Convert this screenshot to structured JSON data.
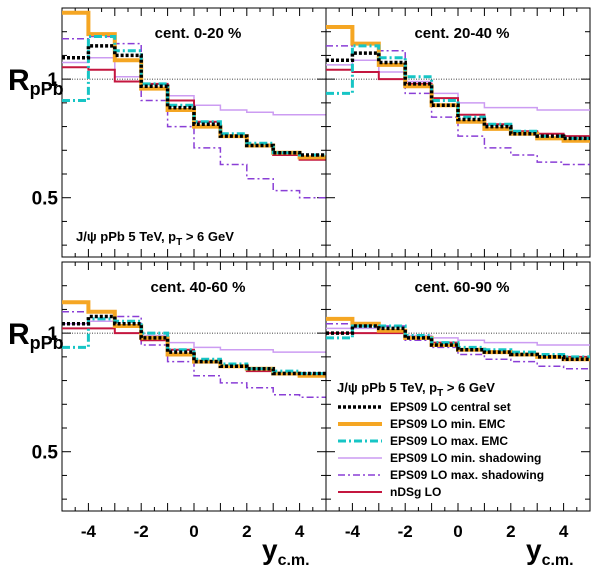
{
  "chart_data": {
    "type": "line",
    "y_axis_label": {
      "main": "R",
      "sub": "pPb"
    },
    "x_axis_label": {
      "main": "y",
      "sub": "c.m."
    },
    "xlim": [
      -5,
      5
    ],
    "ylim": [
      0.25,
      1.3
    ],
    "reference_line": 1.0,
    "x_ticks": [
      "-4",
      "-2",
      "0",
      "2",
      "4"
    ],
    "y_ticks": [
      "1",
      "0.5"
    ],
    "info_text": {
      "main": "J/ψ pPb 5 TeV, p",
      "sub": "T",
      "tail": " > 6 GeV"
    },
    "bin_edges": [
      -5,
      -4,
      -3,
      -2,
      -1,
      0,
      1,
      2,
      3,
      4,
      5
    ],
    "series_styles": [
      {
        "key": "central",
        "name": "EPS09 LO central set",
        "color": "#000000",
        "dash": "3,2",
        "width": 3.5
      },
      {
        "key": "minemc",
        "name": "EPS09 LO min. EMC",
        "color": "#f5a623",
        "dash": "",
        "width": 4
      },
      {
        "key": "maxemc",
        "name": "EPS09 LO max. EMC",
        "color": "#17c5c5",
        "dash": "8,3,2,3",
        "width": 3
      },
      {
        "key": "minshad",
        "name": "EPS09 LO min. shadowing",
        "color": "#cc9cf2",
        "dash": "",
        "width": 1.5
      },
      {
        "key": "maxshad",
        "name": "EPS09 LO max. shadowing",
        "color": "#8a3fd6",
        "dash": "7,3,2,3",
        "width": 1.5
      },
      {
        "key": "ndsg",
        "name": "nDSg LO",
        "color": "#c4163f",
        "dash": "",
        "width": 2
      }
    ],
    "panels": [
      {
        "title": "cent. 0-20 %",
        "series": {
          "central": [
            1.09,
            1.14,
            1.1,
            0.97,
            0.88,
            0.81,
            0.76,
            0.72,
            0.69,
            0.68
          ],
          "minemc": [
            1.28,
            1.19,
            1.08,
            0.96,
            0.87,
            0.8,
            0.76,
            0.72,
            0.69,
            0.67
          ],
          "maxemc": [
            0.91,
            1.18,
            1.12,
            0.98,
            0.89,
            0.82,
            0.77,
            0.73,
            0.69,
            0.68
          ],
          "minshad": [
            1.07,
            1.09,
            1.01,
            0.98,
            0.93,
            0.89,
            0.87,
            0.86,
            0.85,
            0.85
          ],
          "maxshad": [
            1.17,
            1.18,
            1.15,
            0.91,
            0.8,
            0.71,
            0.64,
            0.58,
            0.53,
            0.5
          ],
          "ndsg": [
            1.05,
            1.04,
            0.99,
            0.98,
            0.91,
            0.82,
            0.76,
            0.72,
            0.68,
            0.66
          ]
        }
      },
      {
        "title": "cent. 20-40 %",
        "series": {
          "central": [
            1.08,
            1.11,
            1.07,
            0.98,
            0.89,
            0.83,
            0.8,
            0.77,
            0.76,
            0.75
          ],
          "minemc": [
            1.22,
            1.15,
            1.06,
            0.97,
            0.89,
            0.82,
            0.79,
            0.77,
            0.75,
            0.74
          ],
          "maxemc": [
            0.94,
            1.14,
            1.09,
            1.01,
            0.91,
            0.84,
            0.81,
            0.78,
            0.76,
            0.75
          ],
          "minshad": [
            1.06,
            1.08,
            1.03,
            0.99,
            0.94,
            0.9,
            0.88,
            0.88,
            0.87,
            0.87
          ],
          "maxshad": [
            1.14,
            1.15,
            1.12,
            0.94,
            0.84,
            0.76,
            0.71,
            0.68,
            0.65,
            0.64
          ],
          "ndsg": [
            1.04,
            1.03,
            1.0,
            0.98,
            0.92,
            0.85,
            0.81,
            0.78,
            0.77,
            0.76
          ]
        }
      },
      {
        "title": "cent. 40-60 %",
        "series": {
          "central": [
            1.04,
            1.07,
            1.04,
            0.98,
            0.92,
            0.88,
            0.86,
            0.85,
            0.83,
            0.83
          ],
          "minemc": [
            1.13,
            1.09,
            1.03,
            0.98,
            0.91,
            0.88,
            0.86,
            0.85,
            0.83,
            0.82
          ],
          "maxemc": [
            0.94,
            1.06,
            1.05,
            1.0,
            0.93,
            0.89,
            0.87,
            0.85,
            0.84,
            0.83
          ],
          "minshad": [
            1.04,
            1.05,
            1.03,
            0.99,
            0.96,
            0.94,
            0.93,
            0.93,
            0.92,
            0.92
          ],
          "maxshad": [
            1.09,
            1.09,
            1.07,
            0.95,
            0.88,
            0.82,
            0.79,
            0.77,
            0.74,
            0.73
          ],
          "ndsg": [
            1.02,
            1.02,
            1.0,
            0.97,
            0.93,
            0.88,
            0.86,
            0.84,
            0.83,
            0.82
          ]
        }
      },
      {
        "title": "cent. 60-90 %",
        "series": {
          "central": [
            1.0,
            1.03,
            1.02,
            0.98,
            0.95,
            0.93,
            0.92,
            0.91,
            0.9,
            0.89
          ],
          "minemc": [
            1.06,
            1.04,
            1.01,
            0.98,
            0.95,
            0.93,
            0.92,
            0.91,
            0.9,
            0.89
          ],
          "maxemc": [
            0.98,
            1.03,
            1.03,
            0.99,
            0.96,
            0.94,
            0.93,
            0.92,
            0.91,
            0.9
          ],
          "minshad": [
            1.02,
            1.02,
            1.01,
            0.99,
            0.98,
            0.97,
            0.96,
            0.96,
            0.95,
            0.95
          ],
          "maxshad": [
            1.04,
            1.04,
            1.03,
            0.97,
            0.94,
            0.91,
            0.89,
            0.88,
            0.86,
            0.85
          ],
          "ndsg": [
            1.0,
            1.0,
            1.0,
            0.98,
            0.96,
            0.93,
            0.92,
            0.91,
            0.9,
            0.9
          ]
        }
      }
    ]
  }
}
